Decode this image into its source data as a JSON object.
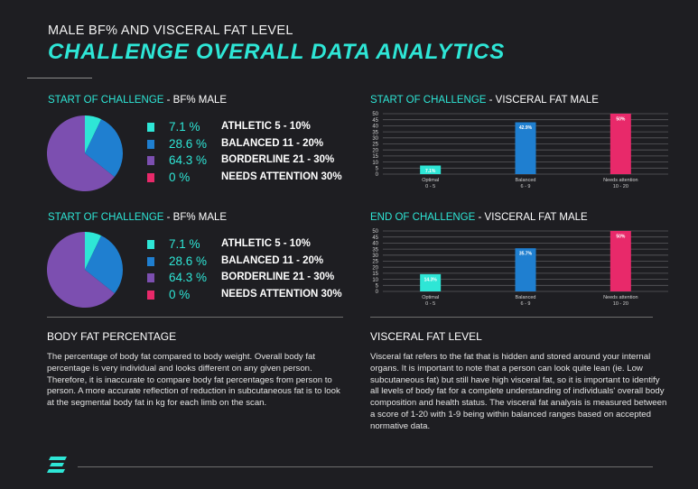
{
  "header": {
    "subtitle": "MALE BF% AND VISCERAL FAT LEVEL",
    "title": "CHALLENGE OVERALL DATA ANALYTICS"
  },
  "colors": {
    "teal": "#2ee6d6",
    "blue": "#1f7fd0",
    "purple": "#7c4fb0",
    "pink": "#e8296a",
    "background": "#1e1e22"
  },
  "chart_data": [
    {
      "type": "pie",
      "header_accent": "START OF CHALLENGE",
      "header_rest": " - BF% MALE",
      "slices": [
        {
          "label": "ATHLETIC 5 - 10%",
          "value_text": "7.1 %",
          "value": 7.1,
          "color": "#2ee6d6"
        },
        {
          "label": "BALANCED 11 - 20%",
          "value_text": "28.6 %",
          "value": 28.6,
          "color": "#1f7fd0"
        },
        {
          "label": "BORDERLINE 21 - 30%",
          "value_text": "64.3 %",
          "value": 64.3,
          "color": "#7c4fb0"
        },
        {
          "label": "NEEDS ATTENTION 30%",
          "value_text": "0 %",
          "value": 0,
          "color": "#e8296a"
        }
      ]
    },
    {
      "type": "pie",
      "header_accent": "START OF CHALLENGE",
      "header_rest": " - BF% MALE",
      "slices": [
        {
          "label": "ATHLETIC 5 - 10%",
          "value_text": "7.1 %",
          "value": 7.1,
          "color": "#2ee6d6"
        },
        {
          "label": "BALANCED 11 - 20%",
          "value_text": "28.6 %",
          "value": 28.6,
          "color": "#1f7fd0"
        },
        {
          "label": "BORDERLINE 21 - 30%",
          "value_text": "64.3 %",
          "value": 64.3,
          "color": "#7c4fb0"
        },
        {
          "label": "NEEDS ATTENTION 30%",
          "value_text": "0 %",
          "value": 0,
          "color": "#e8296a"
        }
      ]
    },
    {
      "type": "bar",
      "header_accent": "START OF CHALLENGE",
      "header_rest": " - VISCERAL FAT MALE",
      "categories": [
        "Optimal",
        "Balanced",
        "Needs attention"
      ],
      "category_ranges": [
        "0 - 5",
        "6 - 9",
        "10 - 20"
      ],
      "values": [
        7.1,
        42.9,
        50
      ],
      "data_labels": [
        "7.1%",
        "42.9%",
        "50%"
      ],
      "colors": [
        "#2ee6d6",
        "#1f7fd0",
        "#e8296a"
      ],
      "ylim": [
        0,
        50
      ],
      "yticks": [
        0,
        5,
        10,
        15,
        20,
        25,
        30,
        35,
        40,
        45,
        50
      ],
      "grid": true
    },
    {
      "type": "bar",
      "header_accent": "END OF CHALLENGE",
      "header_rest": " - VISCERAL FAT MALE",
      "categories": [
        "Optimal",
        "Balanced",
        "Needs attention"
      ],
      "category_ranges": [
        "0 - 5",
        "6 - 9",
        "10 - 20"
      ],
      "values": [
        14.3,
        35.7,
        50
      ],
      "data_labels": [
        "14.3%",
        "35.7%",
        "50%"
      ],
      "colors": [
        "#2ee6d6",
        "#1f7fd0",
        "#e8296a"
      ],
      "ylim": [
        0,
        50
      ],
      "yticks": [
        0,
        5,
        10,
        15,
        20,
        25,
        30,
        35,
        40,
        45,
        50
      ],
      "grid": true
    }
  ],
  "body_fat": {
    "heading": "BODY FAT PERCENTAGE",
    "text": "The percentage of body fat compared to body weight. Overall body fat percentage is very individual and looks different on any given person. Therefore, it is inaccurate to compare body fat percentages from person to person. A more accurate reflection of reduction in subcutaneous fat is to look at the segmental body fat in kg for each limb on the scan."
  },
  "visceral_fat": {
    "heading": "VISCERAL FAT LEVEL",
    "text": "Visceral fat refers to the fat that is hidden and stored around your internal organs. It is important to note that a person can look quite lean (ie. Low subcutaneous fat) but still have high visceral fat, so it is important to identify all levels of body fat for a complete understanding of individuals' overall body composition and health status. The visceral fat analysis is measured between a score of 1-20 with 1-9 being within balanced ranges based on accepted normative data."
  },
  "footer": {
    "logo_icon": "brand-logo-icon"
  }
}
